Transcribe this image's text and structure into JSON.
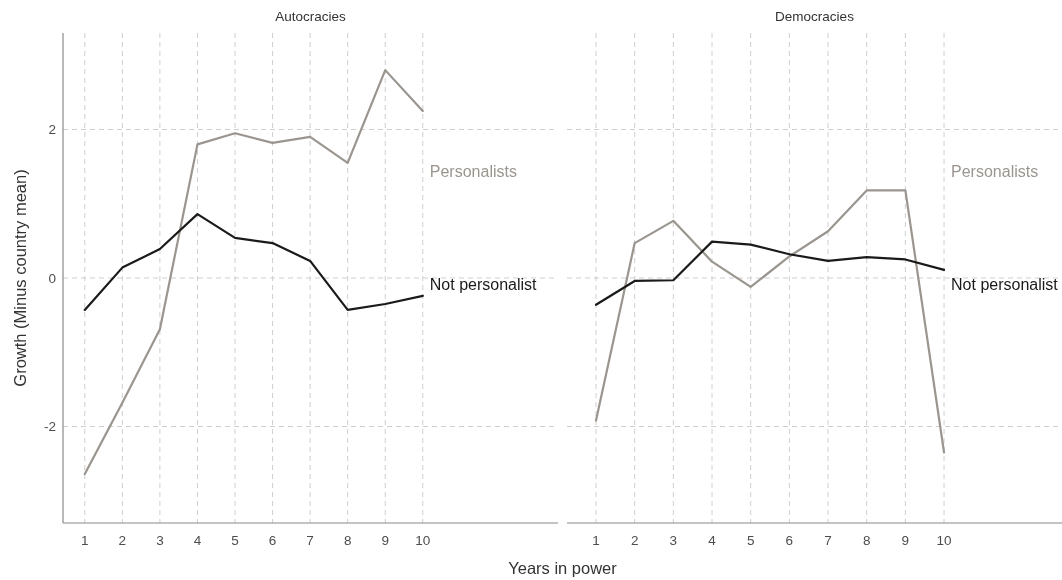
{
  "chart_data": [
    {
      "type": "line",
      "title": "Autocracies",
      "xlabel": "Years in power",
      "ylabel": "Growth (Minus country mean)",
      "x": [
        1,
        2,
        3,
        4,
        5,
        6,
        7,
        8,
        9,
        10
      ],
      "series": [
        {
          "name": "Personalists",
          "color": "#9b958f",
          "values": [
            -2.64,
            -1.68,
            -0.69,
            1.8,
            1.95,
            1.82,
            1.9,
            1.55,
            2.8,
            2.25
          ]
        },
        {
          "name": "Not personalist",
          "color": "#1a1a1a",
          "values": [
            -0.43,
            0.14,
            0.39,
            0.86,
            0.54,
            0.47,
            0.23,
            -0.43,
            -0.35,
            -0.24
          ]
        }
      ],
      "xlim": [
        0.42,
        13.6
      ],
      "ylim": [
        -3.3,
        3.3
      ],
      "xticks": [
        1,
        2,
        3,
        4,
        5,
        6,
        7,
        8,
        9,
        10
      ],
      "yticks": [
        -2,
        0,
        2
      ],
      "grid": true
    },
    {
      "type": "line",
      "title": "Democracies",
      "x": [
        1,
        2,
        3,
        4,
        5,
        6,
        7,
        8,
        9,
        10
      ],
      "series": [
        {
          "name": "Personalists",
          "color": "#9b958f",
          "values": [
            -1.92,
            0.47,
            0.77,
            0.22,
            -0.12,
            0.29,
            0.63,
            1.18,
            1.18,
            -2.35
          ]
        },
        {
          "name": "Not personalist",
          "color": "#1a1a1a",
          "values": [
            -0.36,
            -0.04,
            -0.03,
            0.49,
            0.45,
            0.32,
            0.23,
            0.28,
            0.25,
            0.11
          ]
        }
      ],
      "xlim": [
        0.25,
        13.05
      ],
      "ylim": [
        -3.3,
        3.3
      ],
      "xticks": [
        1,
        2,
        3,
        4,
        5,
        6,
        7,
        8,
        9,
        10
      ],
      "yticks": [
        -2,
        0,
        2
      ],
      "grid": true,
      "tick_labels": "x"
    }
  ]
}
